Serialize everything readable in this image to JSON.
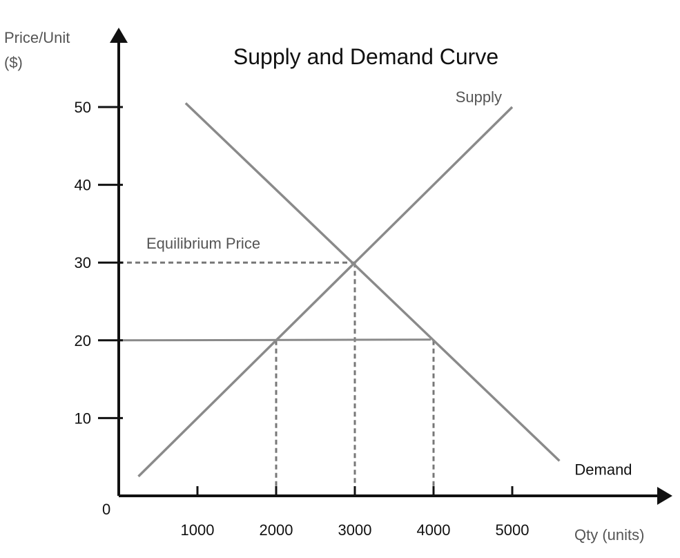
{
  "chart_data": {
    "type": "line",
    "title": "Supply and Demand Curve",
    "ylabel_line1": "Price/Unit",
    "ylabel_line2": "($)",
    "xlabel": "Qty (units)",
    "origin_label": "0",
    "xlim": [
      0,
      6000
    ],
    "ylim": [
      0,
      50
    ],
    "x_ticks": [
      {
        "value": 1000,
        "label": "1000"
      },
      {
        "value": 2000,
        "label": "2000"
      },
      {
        "value": 3000,
        "label": "3000"
      },
      {
        "value": 4000,
        "label": "4000"
      },
      {
        "value": 5000,
        "label": "5000"
      }
    ],
    "y_ticks": [
      {
        "value": 10,
        "label": "10"
      },
      {
        "value": 20,
        "label": "20"
      },
      {
        "value": 30,
        "label": "30"
      },
      {
        "value": 40,
        "label": "40"
      },
      {
        "value": 50,
        "label": "50"
      }
    ],
    "grid": false,
    "series": [
      {
        "name": "Supply",
        "points": [
          [
            250,
            2.5
          ],
          [
            5000,
            50
          ]
        ]
      },
      {
        "name": "Demand",
        "points": [
          [
            850,
            50.5
          ],
          [
            5600,
            4.5
          ]
        ]
      }
    ],
    "annotations": [
      {
        "label": "Equilibrium Price",
        "price": 30,
        "quantity": 3000
      }
    ],
    "reference_lines": {
      "price_line": {
        "price": 20,
        "from_quantity": 0,
        "to_quantity": 4000
      },
      "dashed_quantities": [
        2000,
        3000,
        4000
      ]
    },
    "colors": {
      "axis": "#111111",
      "curve": "#8a8a8a",
      "dashed": "#777777",
      "label_gray": "#555555"
    }
  }
}
